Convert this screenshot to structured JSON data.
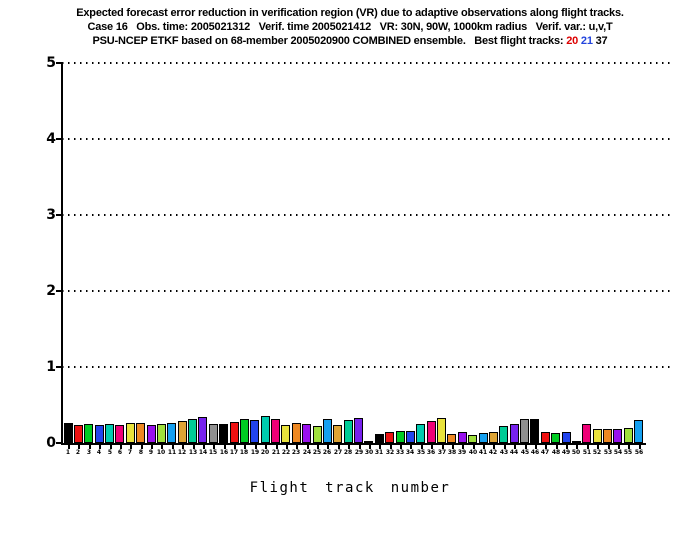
{
  "chart_data": {
    "type": "bar",
    "title": "Expected forecast error reduction in verification region (VR) due to adaptive observations along flight tracks.",
    "subtitle": "Case 16   Obs. time: 2005021312   Verif. time 2005021412   VR: 30N, 90W, 1000km radius   Verif. var.: u,v,T",
    "subtitle2_prefix": "PSU-NCEP ETKF based on 68-member 2005020900 COMBINED ensemble.   Best flight tracks: ",
    "best_tracks": [
      {
        "label": "20",
        "color": "#dd0000"
      },
      {
        "label": "21",
        "color": "#2244dd"
      },
      {
        "label": "37",
        "color": "#000000"
      }
    ],
    "xlabel": "Flight track number",
    "ylabel": "",
    "ylim": [
      0,
      5
    ],
    "yticks": [
      0,
      1,
      2,
      3,
      4,
      5
    ],
    "grid": "dotted-horizontal",
    "legend": "none",
    "categories": [
      "1",
      "2",
      "3",
      "4",
      "5",
      "6",
      "7",
      "8",
      "9",
      "10",
      "11",
      "12",
      "13",
      "14",
      "15",
      "16",
      "17",
      "18",
      "19",
      "20",
      "21",
      "22",
      "23",
      "24",
      "25",
      "26",
      "27",
      "28",
      "29",
      "30",
      "31",
      "32",
      "33",
      "34",
      "35",
      "36",
      "37",
      "38",
      "39",
      "40",
      "41",
      "42",
      "43",
      "44",
      "45",
      "46",
      "47",
      "48",
      "49",
      "50",
      "51",
      "52",
      "53",
      "54",
      "55",
      "56"
    ],
    "values": [
      0.26,
      0.24,
      0.25,
      0.24,
      0.25,
      0.24,
      0.26,
      0.26,
      0.24,
      0.25,
      0.26,
      0.29,
      0.31,
      0.34,
      0.25,
      0.25,
      0.27,
      0.31,
      0.3,
      0.35,
      0.32,
      0.24,
      0.26,
      0.25,
      0.22,
      0.32,
      0.24,
      0.3,
      0.33,
      0.03,
      0.12,
      0.14,
      0.16,
      0.16,
      0.25,
      0.29,
      0.33,
      0.12,
      0.14,
      0.11,
      0.13,
      0.14,
      0.22,
      0.25,
      0.31,
      0.31,
      0.14,
      0.13,
      0.14,
      0.03,
      0.25,
      0.19,
      0.19,
      0.19,
      0.2,
      0.3
    ],
    "bar_colors_cycle": [
      "#000000",
      "#ee1111",
      "#00cc22",
      "#2244ee",
      "#00ccb0",
      "#ee0077",
      "#e8e23c",
      "#ee8822",
      "#9911ee",
      "#a0e03c",
      "#15a0f0",
      "#dda435",
      "#00cc96",
      "#7722ee",
      "#909090"
    ],
    "bar_border_color": "#000000",
    "axis_color": "#000000"
  }
}
